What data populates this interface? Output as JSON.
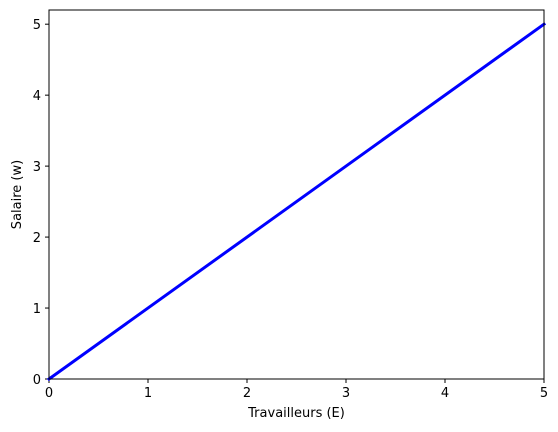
{
  "chart_data": {
    "type": "line",
    "title": "",
    "xlabel": "Travailleurs (E)",
    "ylabel": "Salaire (w)",
    "xlim": [
      0,
      5
    ],
    "ylim": [
      0,
      5.2
    ],
    "x_ticks": [
      "0",
      "1",
      "2",
      "3",
      "4",
      "5"
    ],
    "y_ticks": [
      "0",
      "1",
      "2",
      "3",
      "4",
      "5"
    ],
    "grid": false,
    "legend": "none",
    "series": [
      {
        "x": [
          0,
          5
        ],
        "y": [
          0,
          5
        ],
        "color": "#0000ff"
      }
    ]
  }
}
